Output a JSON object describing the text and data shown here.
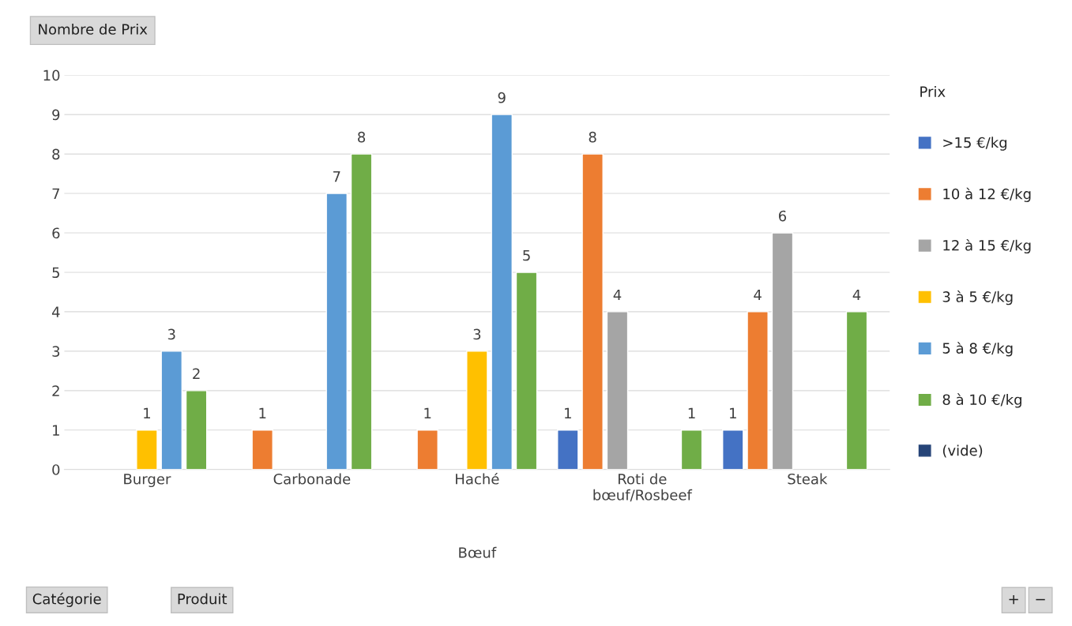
{
  "chart_data": {
    "type": "bar",
    "ylabel": "Nombre de Prix",
    "xlabel": "Bœuf",
    "legend_title": "Prix",
    "categories": [
      "Burger",
      "Carbonade",
      "Haché",
      "Roti de\nbœuf/Rosbeef",
      "Steak"
    ],
    "series": [
      {
        "name": ">15 €/kg",
        "color": "#4472c4",
        "values": [
          null,
          null,
          null,
          1,
          1
        ]
      },
      {
        "name": "10 à 12 €/kg",
        "color": "#ed7d31",
        "values": [
          null,
          1,
          1,
          8,
          4
        ]
      },
      {
        "name": "12 à 15 €/kg",
        "color": "#a5a5a5",
        "values": [
          null,
          null,
          null,
          4,
          6
        ]
      },
      {
        "name": "3 à 5 €/kg",
        "color": "#ffc000",
        "values": [
          1,
          null,
          3,
          null,
          null
        ]
      },
      {
        "name": "5 à 8 €/kg",
        "color": "#5b9bd5",
        "values": [
          3,
          7,
          9,
          null,
          null
        ]
      },
      {
        "name": "8 à 10 €/kg",
        "color": "#70ad47",
        "values": [
          2,
          8,
          5,
          1,
          4
        ]
      },
      {
        "name": "(vide)",
        "color": "#264478",
        "values": [
          null,
          null,
          null,
          null,
          null
        ]
      }
    ],
    "ylim": [
      0,
      10
    ],
    "yticks": [
      0,
      1,
      2,
      3,
      4,
      5,
      6,
      7,
      8,
      9,
      10
    ],
    "grid": "y",
    "legend": "right",
    "data_labels": true,
    "annotations": [
      "Catégorie",
      "Produit",
      "+",
      "−"
    ]
  }
}
